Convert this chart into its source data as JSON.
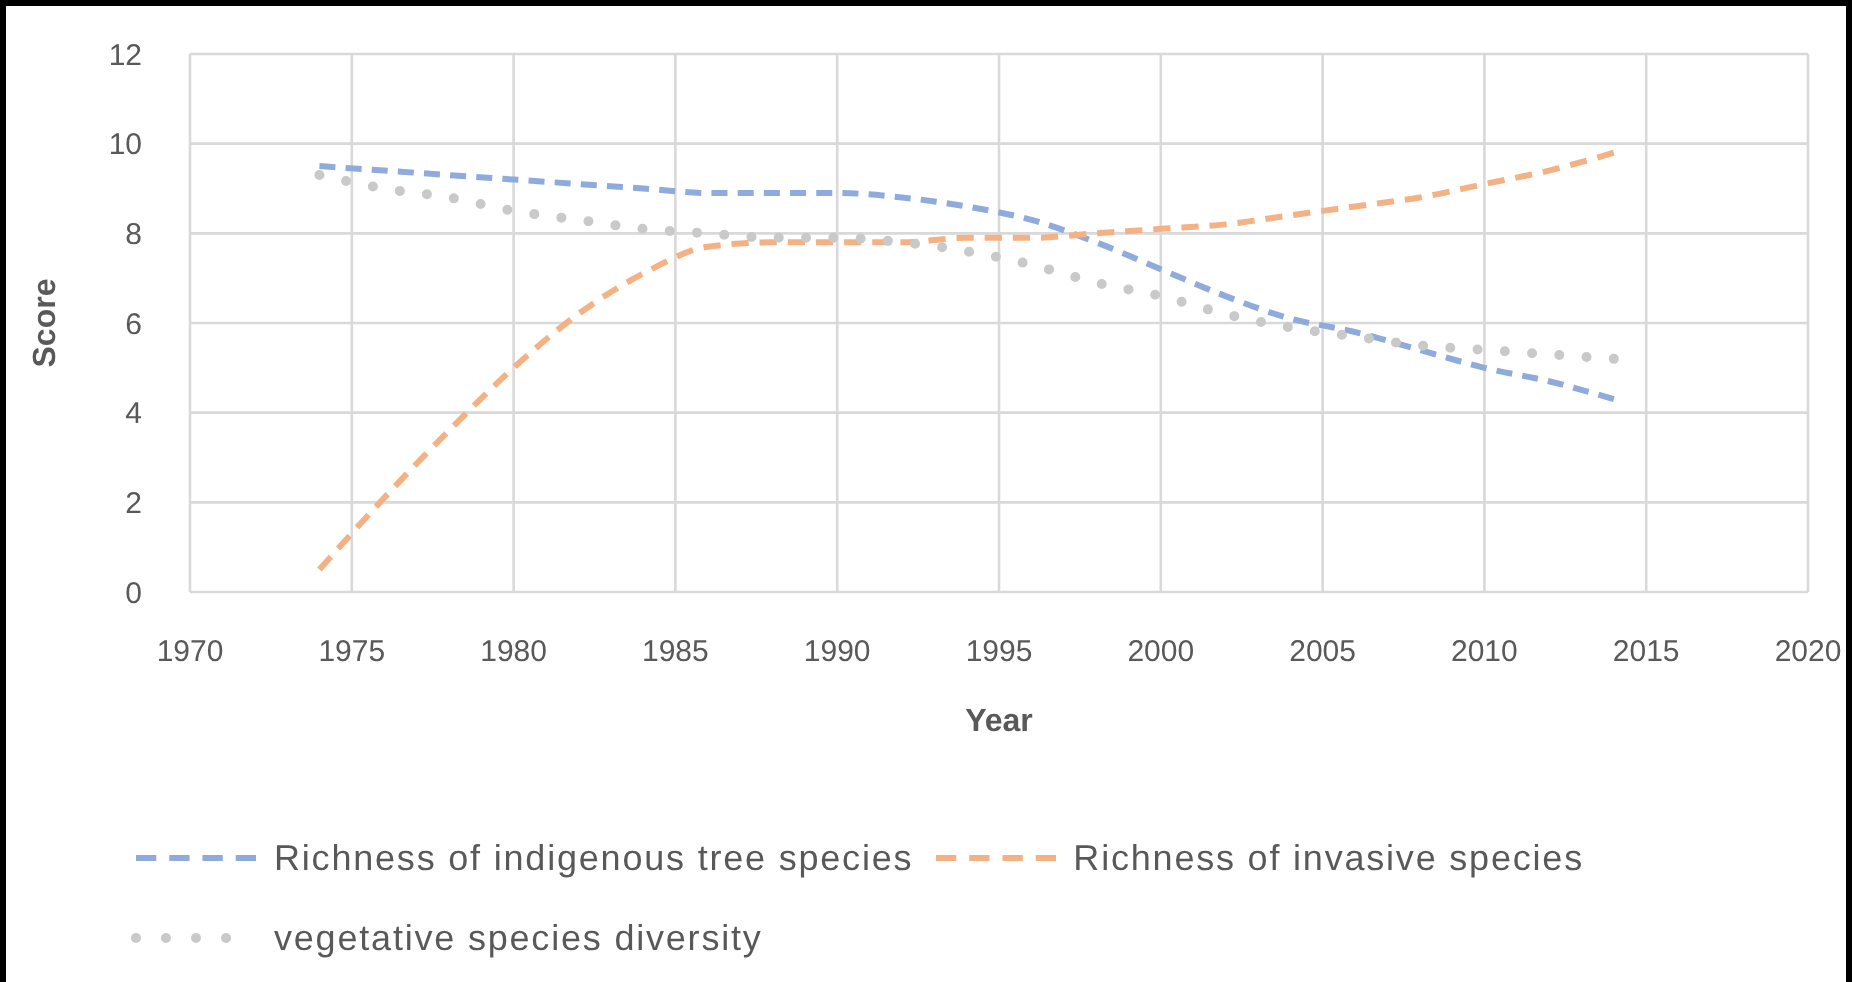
{
  "chart_data": {
    "type": "line",
    "xlabel": "Year",
    "ylabel": "Score",
    "x": [
      1974,
      1976,
      1978,
      1980,
      1982,
      1984,
      1986,
      1988,
      1990,
      1992,
      1994,
      1996,
      1998,
      2000,
      2002,
      2004,
      2006,
      2008,
      2010,
      2012,
      2014
    ],
    "series": [
      {
        "name": "Richness of indigenous tree species",
        "color": "#8faadc",
        "line_style": "dashed",
        "values": [
          9.5,
          9.4,
          9.3,
          9.2,
          9.1,
          9.0,
          8.9,
          8.9,
          8.9,
          8.8,
          8.6,
          8.3,
          7.8,
          7.2,
          6.6,
          6.1,
          5.8,
          5.4,
          5.0,
          4.7,
          4.3
        ]
      },
      {
        "name": "Richness of invasive species",
        "color": "#f4b183",
        "line_style": "dashed",
        "values": [
          0.5,
          2.1,
          3.6,
          5.0,
          6.2,
          7.1,
          7.7,
          7.8,
          7.8,
          7.8,
          7.9,
          7.9,
          8.0,
          8.1,
          8.2,
          8.4,
          8.6,
          8.8,
          9.1,
          9.4,
          9.8
        ]
      },
      {
        "name": "vegetative species diversity",
        "color": "#c9c9c9",
        "line_style": "dotted",
        "values": [
          9.3,
          9.0,
          8.8,
          8.5,
          8.3,
          8.1,
          8.0,
          7.9,
          7.9,
          7.8,
          7.6,
          7.3,
          6.9,
          6.6,
          6.2,
          5.9,
          5.7,
          5.5,
          5.4,
          5.3,
          5.2
        ]
      }
    ],
    "xlim": [
      1970,
      2020
    ],
    "xticks": [
      1970,
      1975,
      1980,
      1985,
      1990,
      1995,
      2000,
      2005,
      2010,
      2015,
      2020
    ],
    "ylim": [
      0,
      12
    ],
    "yticks": [
      0,
      2,
      4,
      6,
      8,
      10,
      12
    ],
    "grid": true,
    "legend": "bottom",
    "marker": "none"
  }
}
